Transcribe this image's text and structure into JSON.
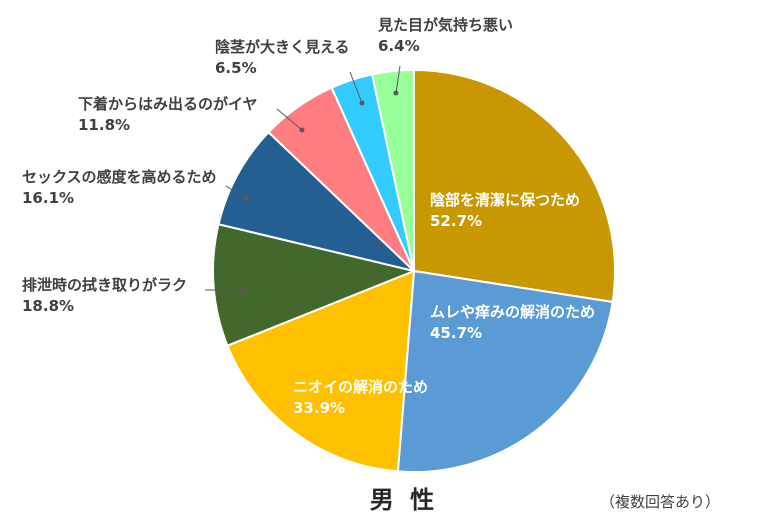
{
  "chart_data": {
    "type": "pie",
    "title": "男 性",
    "note": "（複数回答あり）",
    "slices": [
      {
        "label": "陰部を清潔に保つため",
        "display": "52.7%",
        "value": 52.7,
        "color": "#C99700",
        "placement": "inside"
      },
      {
        "label": "ムレや痒みの解消のため",
        "display": "45.7%",
        "value": 45.7,
        "color": "#5B9BD5",
        "placement": "inside"
      },
      {
        "label": "ニオイの解消のため",
        "display": "33.9%",
        "value": 33.9,
        "color": "#FFC000",
        "placement": "inside"
      },
      {
        "label": "排泄時の拭き取りがラク",
        "display": "18.8%",
        "value": 18.8,
        "color": "#43682B",
        "placement": "outside"
      },
      {
        "label": "セックスの感度を高めるため",
        "display": "16.1%",
        "value": 16.1,
        "color": "#255E91",
        "placement": "outside"
      },
      {
        "label": "下着からはみ出るのがイヤ",
        "display": "11.8%",
        "value": 11.8,
        "color": "#FF7C80",
        "placement": "outside"
      },
      {
        "label": "陰茎が大きく見える",
        "display": "6.5%",
        "value": 6.5,
        "color": "#33CCFF",
        "placement": "outside"
      },
      {
        "label": "見た目が気持ち悪い",
        "display": "6.4%",
        "value": 6.4,
        "color": "#99FF99",
        "placement": "outside"
      }
    ]
  }
}
